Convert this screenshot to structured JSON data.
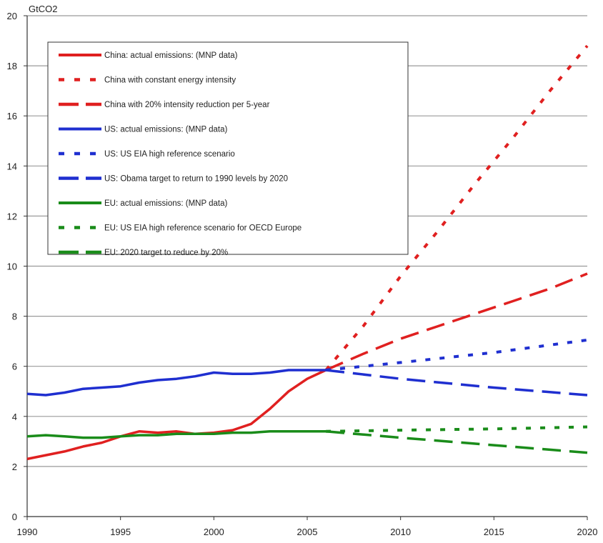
{
  "chart_data": {
    "type": "line",
    "ylabel": "GtCO2",
    "xlim": [
      1990,
      2020
    ],
    "ylim": [
      0,
      20
    ],
    "x_ticks": [
      1990,
      1995,
      2000,
      2005,
      2010,
      2015,
      2020
    ],
    "y_ticks": [
      0,
      2,
      4,
      6,
      8,
      10,
      12,
      14,
      16,
      18,
      20
    ],
    "grid": "horizontal",
    "legend_placement": "top-left",
    "series": [
      {
        "name": "China: actual emissions: (MNP data)",
        "color": "#e02020",
        "dash": "solid",
        "x": [
          1990,
          1991,
          1992,
          1993,
          1994,
          1995,
          1996,
          1997,
          1998,
          1999,
          2000,
          2001,
          2002,
          2003,
          2004,
          2005,
          2006
        ],
        "y": [
          2.3,
          2.45,
          2.6,
          2.8,
          2.95,
          3.2,
          3.4,
          3.35,
          3.4,
          3.3,
          3.35,
          3.45,
          3.7,
          4.3,
          5.0,
          5.5,
          5.85
        ]
      },
      {
        "name": "China with constant energy intensity",
        "color": "#e02020",
        "dash": "dot",
        "x": [
          2006,
          2008,
          2010,
          2012,
          2014,
          2016,
          2018,
          2020
        ],
        "y": [
          5.85,
          7.6,
          9.6,
          11.4,
          13.3,
          15.1,
          17.0,
          18.8
        ]
      },
      {
        "name": "China with 20% intensity reduction per 5-year",
        "color": "#e02020",
        "dash": "dash",
        "x": [
          2006,
          2008,
          2010,
          2012,
          2014,
          2016,
          2018,
          2020
        ],
        "y": [
          5.85,
          6.5,
          7.1,
          7.6,
          8.1,
          8.6,
          9.1,
          9.7
        ]
      },
      {
        "name": "US: actual emissions: (MNP data)",
        "color": "#1f2fd0",
        "dash": "solid",
        "x": [
          1990,
          1991,
          1992,
          1993,
          1994,
          1995,
          1996,
          1997,
          1998,
          1999,
          2000,
          2001,
          2002,
          2003,
          2004,
          2005,
          2006
        ],
        "y": [
          4.9,
          4.85,
          4.95,
          5.1,
          5.15,
          5.2,
          5.35,
          5.45,
          5.5,
          5.6,
          5.75,
          5.7,
          5.7,
          5.75,
          5.85,
          5.85,
          5.85
        ]
      },
      {
        "name": "US: US EIA high reference scenario",
        "color": "#1f2fd0",
        "dash": "dot",
        "x": [
          2006,
          2010,
          2015,
          2020
        ],
        "y": [
          5.85,
          6.15,
          6.55,
          7.05
        ]
      },
      {
        "name": "US: Obama target to return to 1990 levels by 2020",
        "color": "#1f2fd0",
        "dash": "dash",
        "x": [
          2006,
          2010,
          2015,
          2020
        ],
        "y": [
          5.85,
          5.5,
          5.15,
          4.85
        ]
      },
      {
        "name": "EU: actual emissions: (MNP data)",
        "color": "#1a8c1a",
        "dash": "solid",
        "x": [
          1990,
          1991,
          1992,
          1993,
          1994,
          1995,
          1996,
          1997,
          1998,
          1999,
          2000,
          2001,
          2002,
          2003,
          2004,
          2005,
          2006
        ],
        "y": [
          3.2,
          3.25,
          3.2,
          3.15,
          3.15,
          3.2,
          3.25,
          3.25,
          3.3,
          3.3,
          3.3,
          3.35,
          3.35,
          3.4,
          3.4,
          3.4,
          3.4
        ]
      },
      {
        "name": "EU: US EIA high reference scenario for OECD Europe",
        "color": "#1a8c1a",
        "dash": "dot",
        "x": [
          2006,
          2010,
          2015,
          2020
        ],
        "y": [
          3.4,
          3.45,
          3.5,
          3.58
        ]
      },
      {
        "name": "EU: 2020 target to reduce by 20%",
        "color": "#1a8c1a",
        "dash": "dash",
        "x": [
          2006,
          2010,
          2015,
          2020
        ],
        "y": [
          3.4,
          3.15,
          2.85,
          2.55
        ]
      }
    ]
  }
}
